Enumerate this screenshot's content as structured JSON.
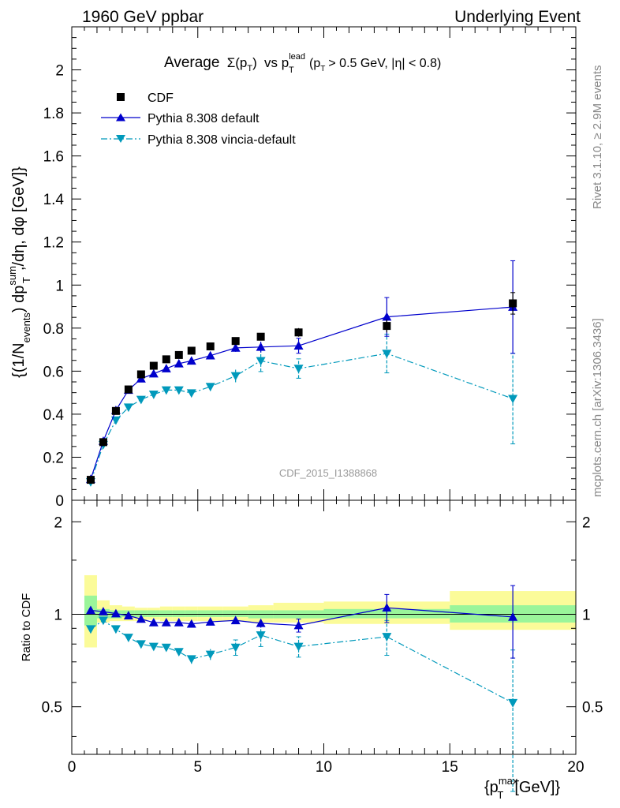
{
  "header": {
    "left": "1960 GeV ppbar",
    "right": "Underlying Event"
  },
  "side_labels": {
    "rivet": "Rivet 3.1.10, ≥ 2.9M events",
    "mcplots": "mcplots.cern.ch [arXiv:1306.3436]"
  },
  "chart_data": [
    {
      "type": "scatter",
      "panel": "main",
      "title_parts": {
        "pre": "Average",
        "sigma": "Σ(p",
        "sub_t": "T",
        "close": ")",
        "vs": "vs p",
        "sup_lead": "lead",
        "sub_t2": "T",
        "cut_open": "(p",
        "sub_t3": "T",
        "cut": "> 0.5 GeV, |η| < 0.8)"
      },
      "watermark": "CDF_2015_I1388868",
      "ylabel": "{(1/N_events) dp_T^sum/dη, dφ [GeV]}",
      "ylabel_parts": {
        "a": "{(1/N",
        "a_sub": "events",
        "b": ") dp",
        "b_sup": "sum",
        "b_sub": "T",
        "c": ",/dη, dφ [GeV]}"
      },
      "xlim": [
        0,
        20
      ],
      "ylim": [
        0,
        2.2
      ],
      "y_ticks": [
        0,
        0.2,
        0.4,
        0.6,
        0.8,
        1,
        1.2,
        1.4,
        1.6,
        1.8,
        2
      ],
      "y_tick_labels": [
        "0",
        "0.2",
        "0.4",
        "0.6",
        "0.8",
        "1",
        "1.2",
        "1.4",
        "1.6",
        "1.8",
        "2"
      ],
      "legend": [
        {
          "name": "CDF",
          "color": "#000000",
          "marker": "square",
          "line": "none"
        },
        {
          "name": "Pythia 8.308 default",
          "color": "#0000cc",
          "marker": "triangle-up",
          "line": "solid"
        },
        {
          "name": "Pythia 8.308 vincia-default",
          "color": "#0099bb",
          "marker": "triangle-down",
          "line": "dashdot"
        }
      ],
      "series": [
        {
          "name": "CDF",
          "x": [
            0.75,
            1.25,
            1.75,
            2.25,
            2.75,
            3.25,
            3.75,
            4.25,
            4.75,
            5.5,
            6.5,
            7.5,
            9.0,
            12.5,
            17.5
          ],
          "y": [
            0.095,
            0.27,
            0.415,
            0.515,
            0.585,
            0.625,
            0.655,
            0.675,
            0.695,
            0.715,
            0.74,
            0.76,
            0.78,
            0.81,
            0.915
          ],
          "yerr": [
            0.005,
            0.01,
            0.01,
            0.01,
            0.01,
            0.01,
            0.01,
            0.01,
            0.01,
            0.01,
            0.015,
            0.015,
            0.02,
            0.03,
            0.05
          ]
        },
        {
          "name": "Pythia 8.308 default",
          "x": [
            0.75,
            1.25,
            1.75,
            2.25,
            2.75,
            3.25,
            3.75,
            4.25,
            4.75,
            5.5,
            6.5,
            7.5,
            9.0,
            12.5,
            17.5
          ],
          "y": [
            0.098,
            0.275,
            0.418,
            0.512,
            0.565,
            0.588,
            0.612,
            0.635,
            0.648,
            0.672,
            0.708,
            0.712,
            0.718,
            0.852,
            0.898
          ],
          "yerr": [
            0.003,
            0.005,
            0.006,
            0.007,
            0.008,
            0.009,
            0.01,
            0.011,
            0.012,
            0.014,
            0.018,
            0.025,
            0.035,
            0.09,
            0.215
          ]
        },
        {
          "name": "Pythia 8.308 vincia-default",
          "x": [
            0.75,
            1.25,
            1.75,
            2.25,
            2.75,
            3.25,
            3.75,
            4.25,
            4.75,
            5.5,
            6.5,
            7.5,
            9.0,
            12.5,
            17.5
          ],
          "y": [
            0.085,
            0.258,
            0.372,
            0.432,
            0.468,
            0.492,
            0.512,
            0.512,
            0.498,
            0.528,
            0.578,
            0.648,
            0.612,
            0.682,
            0.472
          ],
          "yerr": [
            0.003,
            0.005,
            0.007,
            0.008,
            0.01,
            0.011,
            0.013,
            0.014,
            0.016,
            0.02,
            0.03,
            0.05,
            0.045,
            0.09,
            0.21
          ]
        }
      ]
    },
    {
      "type": "scatter",
      "panel": "ratio",
      "ylabel": "Ratio to CDF",
      "xlabel_parts": {
        "open": "{p",
        "sup": "max",
        "sub": "T",
        "rest": "[GeV]}"
      },
      "xlim": [
        0,
        20
      ],
      "ylim": [
        0.35,
        2.35
      ],
      "x_ticks": [
        0,
        5,
        10,
        15,
        20
      ],
      "x_tick_labels": [
        "0",
        "5",
        "10",
        "15",
        "20"
      ],
      "y_ticks": [
        0.5,
        1,
        2
      ],
      "y_tick_labels": [
        "0.5",
        "1",
        "2"
      ],
      "band_colors": {
        "inner": "#9af59a",
        "outer": "#fbfb99"
      },
      "bands": {
        "x_edges": [
          0.5,
          1.0,
          1.5,
          2.0,
          2.5,
          3.0,
          3.5,
          4.0,
          4.5,
          5.0,
          6.0,
          7.0,
          8.0,
          10.0,
          15.0,
          20.0
        ],
        "inner": [
          [
            0.92,
            1.15
          ],
          [
            0.97,
            1.04
          ],
          [
            0.97,
            1.03
          ],
          [
            0.98,
            1.03
          ],
          [
            0.98,
            1.03
          ],
          [
            0.98,
            1.03
          ],
          [
            0.98,
            1.03
          ],
          [
            0.98,
            1.03
          ],
          [
            0.98,
            1.03
          ],
          [
            0.98,
            1.03
          ],
          [
            0.98,
            1.03
          ],
          [
            0.97,
            1.03
          ],
          [
            0.97,
            1.03
          ],
          [
            0.97,
            1.04
          ],
          [
            0.94,
            1.07
          ]
        ],
        "outer": [
          [
            0.78,
            1.34
          ],
          [
            0.94,
            1.11
          ],
          [
            0.95,
            1.07
          ],
          [
            0.95,
            1.06
          ],
          [
            0.95,
            1.05
          ],
          [
            0.96,
            1.05
          ],
          [
            0.95,
            1.06
          ],
          [
            0.95,
            1.06
          ],
          [
            0.95,
            1.06
          ],
          [
            0.95,
            1.06
          ],
          [
            0.95,
            1.06
          ],
          [
            0.94,
            1.07
          ],
          [
            0.94,
            1.09
          ],
          [
            0.93,
            1.1
          ],
          [
            0.89,
            1.19
          ]
        ]
      },
      "series": [
        {
          "name": "Pythia 8.308 default",
          "x": [
            0.75,
            1.25,
            1.75,
            2.25,
            2.75,
            3.25,
            3.75,
            4.25,
            4.75,
            5.5,
            6.5,
            7.5,
            9.0,
            12.5,
            17.5
          ],
          "y": [
            1.03,
            1.02,
            1.005,
            0.99,
            0.965,
            0.94,
            0.94,
            0.94,
            0.93,
            0.945,
            0.955,
            0.935,
            0.92,
            1.05,
            0.98
          ],
          "yerr": [
            0.01,
            0.01,
            0.01,
            0.01,
            0.01,
            0.01,
            0.01,
            0.01,
            0.015,
            0.015,
            0.025,
            0.03,
            0.045,
            0.11,
            0.26
          ]
        },
        {
          "name": "Pythia 8.308 vincia-default",
          "x": [
            0.75,
            1.25,
            1.75,
            2.25,
            2.75,
            3.25,
            3.75,
            4.25,
            4.75,
            5.5,
            6.5,
            7.5,
            9.0,
            12.5,
            17.5
          ],
          "y": [
            0.895,
            0.955,
            0.895,
            0.84,
            0.8,
            0.785,
            0.78,
            0.755,
            0.715,
            0.74,
            0.78,
            0.855,
            0.785,
            0.845,
            0.515
          ],
          "yerr": [
            0.01,
            0.01,
            0.015,
            0.015,
            0.015,
            0.015,
            0.02,
            0.02,
            0.025,
            0.03,
            0.045,
            0.07,
            0.06,
            0.11,
            0.25
          ]
        }
      ]
    }
  ]
}
